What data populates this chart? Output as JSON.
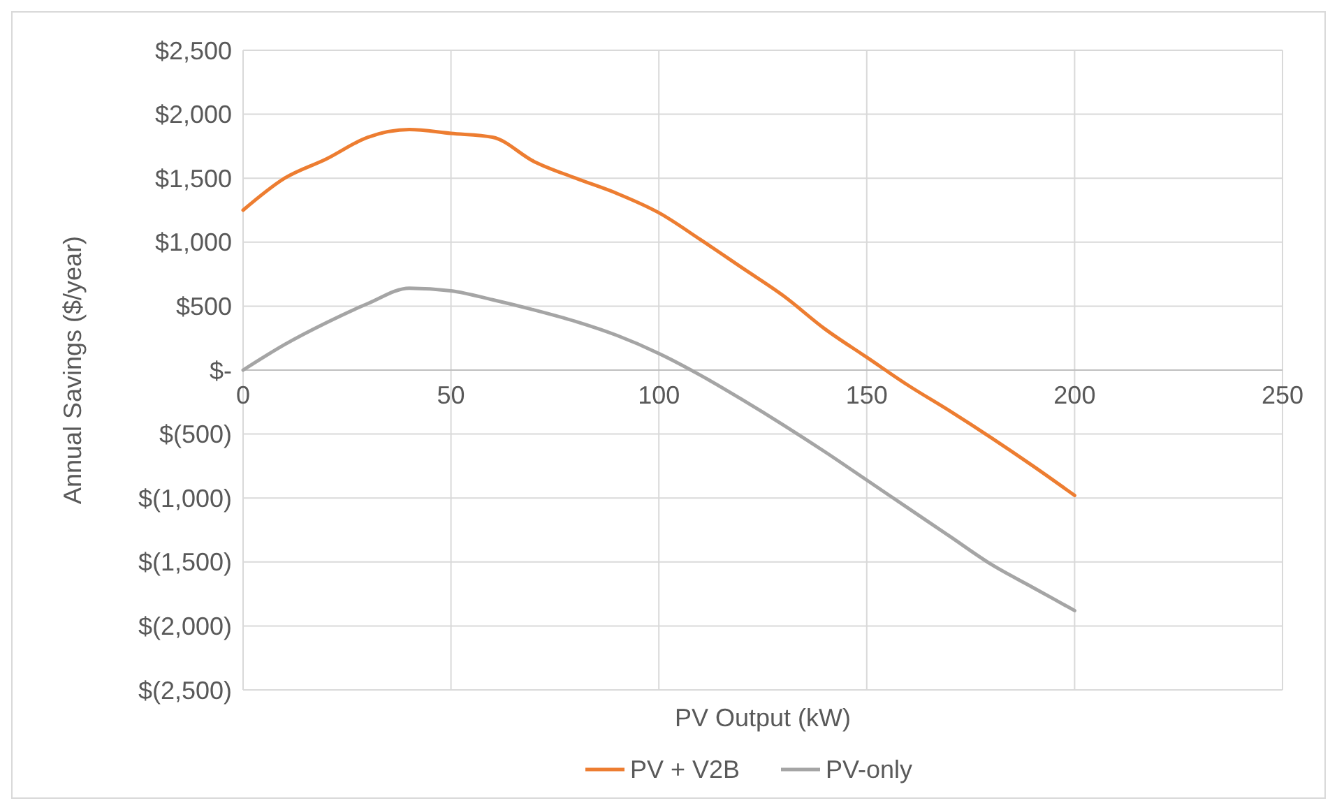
{
  "chart_data": {
    "type": "line",
    "xlabel": "PV Output (kW)",
    "ylabel": "Annual Savings ($/year)",
    "x": [
      0,
      10,
      20,
      30,
      40,
      50,
      60,
      70,
      80,
      90,
      100,
      110,
      120,
      130,
      140,
      150,
      160,
      170,
      180,
      190,
      200
    ],
    "series": [
      {
        "name": "PV + V2B",
        "color": "#ed7d31",
        "values": [
          1250,
          1500,
          1650,
          1820,
          1880,
          1850,
          1820,
          1630,
          1500,
          1380,
          1230,
          1020,
          800,
          580,
          320,
          100,
          -120,
          -320,
          -530,
          -750,
          -980
        ]
      },
      {
        "name": "PV-only",
        "color": "#a5a5a5",
        "values": [
          0,
          200,
          370,
          520,
          640,
          620,
          550,
          470,
          380,
          270,
          130,
          -40,
          -230,
          -430,
          -640,
          -860,
          -1080,
          -1300,
          -1520,
          -1700,
          -1880
        ]
      }
    ],
    "xlim": [
      0,
      250
    ],
    "xticks": [
      0,
      50,
      100,
      150,
      200,
      250
    ],
    "ylim": [
      -2500,
      2500
    ],
    "yticks": [
      {
        "value": 2500,
        "label": "$2,500"
      },
      {
        "value": 2000,
        "label": "$2,000"
      },
      {
        "value": 1500,
        "label": "$1,500"
      },
      {
        "value": 1000,
        "label": "$1,000"
      },
      {
        "value": 500,
        "label": "$500"
      },
      {
        "value": 0,
        "label": "$-"
      },
      {
        "value": -500,
        "label": "$(500)"
      },
      {
        "value": -1000,
        "label": "$(1,000)"
      },
      {
        "value": -1500,
        "label": "$(1,500)"
      },
      {
        "value": -2000,
        "label": "$(2,000)"
      },
      {
        "value": -2500,
        "label": "$(2,500)"
      }
    ],
    "grid": true,
    "legend": "bottom",
    "marker": "none",
    "line_style": "solid"
  }
}
